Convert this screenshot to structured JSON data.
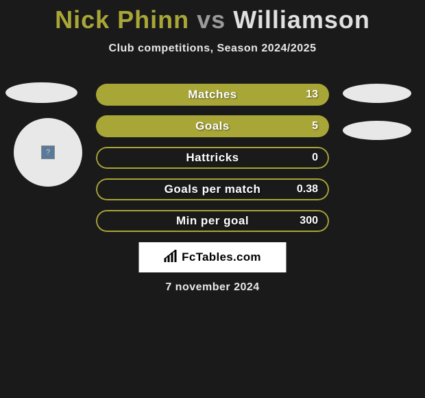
{
  "title": {
    "player1": "Nick Phinn",
    "vs": "vs",
    "player2": "Williamson",
    "player1_color": "#a9a638",
    "vs_color": "#9a9a9a",
    "player2_color": "#e0e0e0",
    "fontsize": 36
  },
  "subtitle": "Club competitions, Season 2024/2025",
  "subtitle_color": "#e8e8e8",
  "subtitle_fontsize": 16,
  "background_color": "#1a1a1a",
  "stats": [
    {
      "label": "Matches",
      "value": "13",
      "bg_color": "#a9a638",
      "fill_color": "#a9a638",
      "fill_left_pct": 0,
      "fill_right_pct": 100,
      "border": false
    },
    {
      "label": "Goals",
      "value": "5",
      "bg_color": "#a9a638",
      "fill_color": "#a9a638",
      "fill_left_pct": 0,
      "fill_right_pct": 100,
      "border": false
    },
    {
      "label": "Hattricks",
      "value": "0",
      "bg_color": "transparent",
      "fill_color": "transparent",
      "fill_left_pct": 0,
      "fill_right_pct": 0,
      "border": true,
      "border_color": "#a9a638"
    },
    {
      "label": "Goals per match",
      "value": "0.38",
      "bg_color": "transparent",
      "fill_color": "transparent",
      "fill_left_pct": 0,
      "fill_right_pct": 0,
      "border": true,
      "border_color": "#a9a638"
    },
    {
      "label": "Min per goal",
      "value": "300",
      "bg_color": "transparent",
      "fill_color": "transparent",
      "fill_left_pct": 0,
      "fill_right_pct": 0,
      "border": true,
      "border_color": "#a9a638"
    }
  ],
  "stat_bar": {
    "height": 32,
    "border_radius": 16,
    "spacing": 14,
    "label_color": "#ffffff",
    "label_fontsize": 17,
    "value_color": "#ffffff",
    "value_fontsize": 16
  },
  "ellipses": {
    "color": "#e8e8e8"
  },
  "avatar": {
    "placeholder": "?",
    "inner_bg": "#5a7a9a"
  },
  "footer": {
    "badge_text": "FcTables.com",
    "badge_bg": "#ffffff",
    "badge_text_color": "#000000",
    "date": "7 november 2024",
    "date_color": "#e8e8e8",
    "date_fontsize": 16
  }
}
